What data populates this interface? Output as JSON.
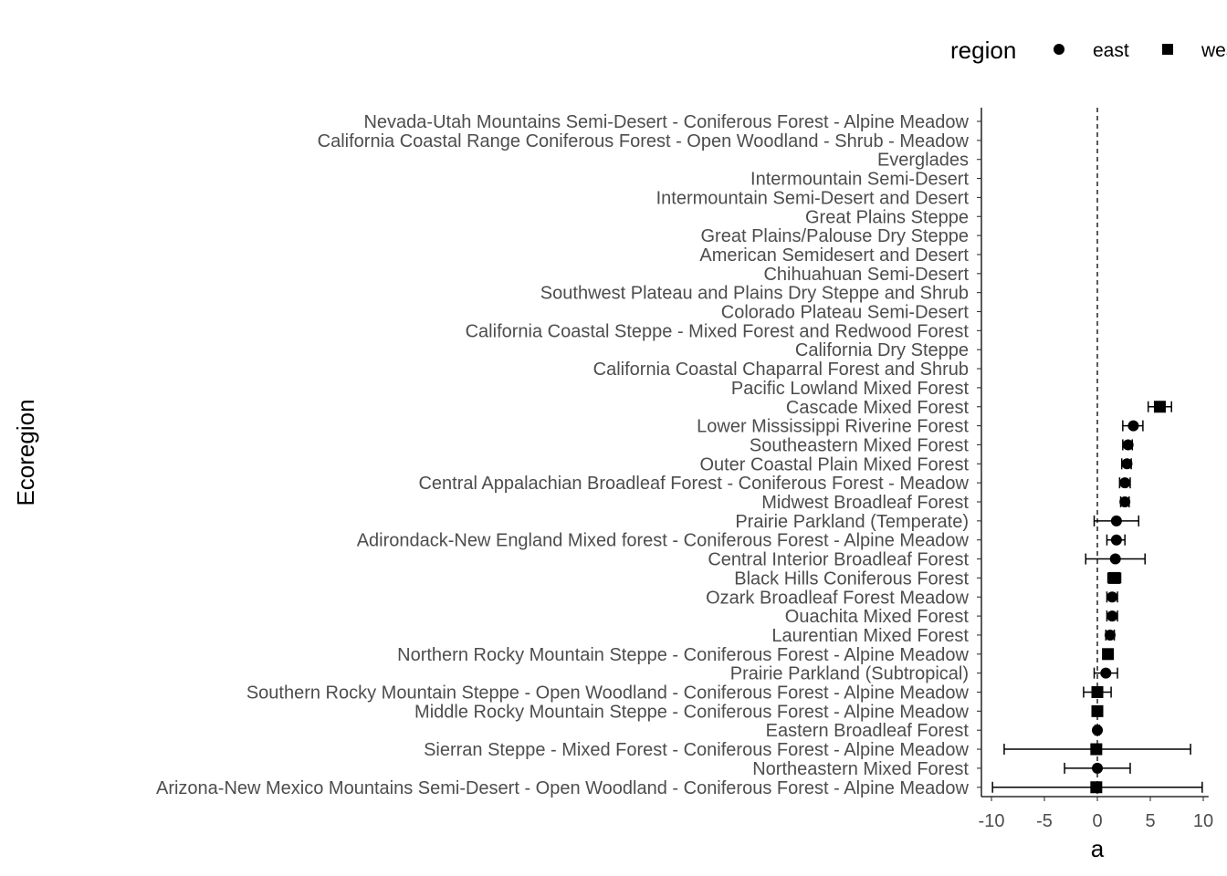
{
  "chart_data": {
    "type": "scatter",
    "subtype": "dot-and-whisker",
    "xlabel": "a",
    "ylabel": "Ecoregion",
    "xlim": [
      -10.5,
      10.5
    ],
    "x_ticks": [
      -10,
      -5,
      0,
      5,
      10
    ],
    "x_tick_labels": [
      "-10",
      "-5",
      "0",
      "5",
      "10"
    ],
    "reference_line": {
      "x": 0,
      "style": "dashed"
    },
    "legend": {
      "title": "region",
      "placement": "top",
      "entries": [
        {
          "label": "east",
          "shape": "circle"
        },
        {
          "label": "west",
          "shape": "square"
        }
      ]
    },
    "categories": [
      "Nevada-Utah Mountains Semi-Desert - Coniferous Forest - Alpine Meadow",
      "California Coastal Range Coniferous Forest - Open Woodland - Shrub - Meadow",
      "Everglades",
      "Intermountain Semi-Desert",
      "Intermountain Semi-Desert and Desert",
      "Great Plains Steppe",
      "Great Plains/Palouse Dry Steppe",
      "American Semidesert and Desert",
      "Chihuahuan Semi-Desert",
      "Southwest Plateau and Plains Dry Steppe and Shrub",
      "Colorado Plateau Semi-Desert",
      "California Coastal Steppe - Mixed Forest and Redwood Forest",
      "California Dry Steppe",
      "California Coastal Chaparral Forest and Shrub",
      "Pacific Lowland Mixed Forest",
      "Cascade Mixed Forest",
      "Lower Mississippi Riverine Forest",
      "Southeastern Mixed Forest",
      "Outer Coastal Plain Mixed Forest",
      "Central Appalachian Broadleaf Forest - Coniferous Forest - Meadow",
      "Midwest Broadleaf Forest",
      "Prairie Parkland (Temperate)",
      "Adirondack-New England Mixed forest - Coniferous Forest - Alpine Meadow",
      "Central Interior Broadleaf Forest",
      "Black Hills Coniferous Forest",
      "Ozark Broadleaf Forest Meadow",
      "Ouachita Mixed Forest",
      "Laurentian Mixed Forest",
      "Northern Rocky Mountain Steppe - Coniferous Forest - Alpine Meadow",
      "Prairie Parkland (Subtropical)",
      "Southern Rocky Mountain Steppe - Open Woodland - Coniferous Forest - Alpine Meadow",
      "Middle Rocky Mountain Steppe - Coniferous Forest - Alpine Meadow",
      "Eastern Broadleaf Forest",
      "Sierran Steppe - Mixed Forest - Coniferous Forest - Alpine Meadow",
      "Northeastern Mixed Forest",
      "Arizona-New Mexico Mountains Semi-Desert - Open Woodland - Coniferous Forest - Alpine Meadow"
    ],
    "points": [
      {
        "category": "Cascade Mixed Forest",
        "region": "west",
        "x": 5.9,
        "lo": 4.8,
        "hi": 7.0
      },
      {
        "category": "Lower Mississippi Riverine Forest",
        "region": "east",
        "x": 3.4,
        "lo": 2.4,
        "hi": 4.3
      },
      {
        "category": "Southeastern Mixed Forest",
        "region": "east",
        "x": 2.9,
        "lo": 2.4,
        "hi": 3.3
      },
      {
        "category": "Outer Coastal Plain Mixed Forest",
        "region": "east",
        "x": 2.8,
        "lo": 2.3,
        "hi": 3.2
      },
      {
        "category": "Central Appalachian Broadleaf Forest - Coniferous Forest - Meadow",
        "region": "east",
        "x": 2.6,
        "lo": 2.1,
        "hi": 3.1
      },
      {
        "category": "Midwest Broadleaf Forest",
        "region": "east",
        "x": 2.6,
        "lo": 2.2,
        "hi": 3.0
      },
      {
        "category": "Prairie Parkland (Temperate)",
        "region": "east",
        "x": 1.8,
        "lo": -0.3,
        "hi": 3.9
      },
      {
        "category": "Adirondack-New England Mixed forest - Coniferous Forest - Alpine Meadow",
        "region": "east",
        "x": 1.8,
        "lo": 0.9,
        "hi": 2.6
      },
      {
        "category": "Central Interior Broadleaf Forest",
        "region": "east",
        "x": 1.7,
        "lo": -1.1,
        "hi": 4.5
      },
      {
        "category": "Black Hills Coniferous Forest",
        "region": "west",
        "x": 1.6,
        "lo": 1.0,
        "hi": 2.2
      },
      {
        "category": "Ozark Broadleaf Forest Meadow",
        "region": "east",
        "x": 1.4,
        "lo": 0.9,
        "hi": 1.9
      },
      {
        "category": "Ouachita Mixed Forest",
        "region": "east",
        "x": 1.4,
        "lo": 0.9,
        "hi": 1.9
      },
      {
        "category": "Laurentian Mixed Forest",
        "region": "east",
        "x": 1.2,
        "lo": 0.8,
        "hi": 1.6
      },
      {
        "category": "Northern Rocky Mountain Steppe - Coniferous Forest - Alpine Meadow",
        "region": "west",
        "x": 1.0,
        "lo": 0.6,
        "hi": 1.4
      },
      {
        "category": "Prairie Parkland (Subtropical)",
        "region": "east",
        "x": 0.8,
        "lo": -0.3,
        "hi": 1.9
      },
      {
        "category": "Southern Rocky Mountain Steppe - Open Woodland - Coniferous Forest - Alpine Meadow",
        "region": "west",
        "x": 0.0,
        "lo": -1.3,
        "hi": 1.3
      },
      {
        "category": "Middle Rocky Mountain Steppe - Coniferous Forest - Alpine Meadow",
        "region": "west",
        "x": 0.0,
        "lo": -0.4,
        "hi": 0.4
      },
      {
        "category": "Eastern Broadleaf Forest",
        "region": "east",
        "x": 0.0,
        "lo": -0.2,
        "hi": 0.2
      },
      {
        "category": "Sierran Steppe - Mixed Forest - Coniferous Forest - Alpine Meadow",
        "region": "west",
        "x": -0.1,
        "lo": -8.8,
        "hi": 8.8
      },
      {
        "category": "Northeastern Mixed Forest",
        "region": "east",
        "x": 0.0,
        "lo": -3.1,
        "hi": 3.1
      },
      {
        "category": "Arizona-New Mexico Mountains Semi-Desert - Open Woodland - Coniferous Forest - Alpine Meadow",
        "region": "west",
        "x": -0.1,
        "lo": -9.9,
        "hi": 9.9
      }
    ]
  }
}
